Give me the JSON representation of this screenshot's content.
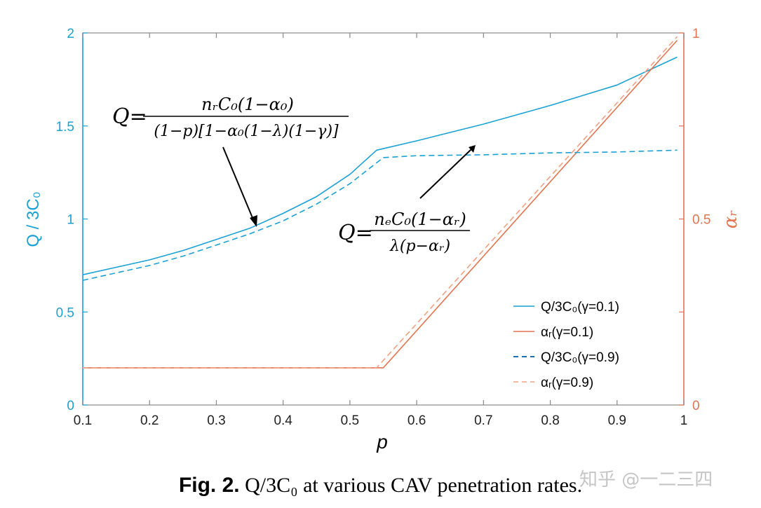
{
  "caption": {
    "fig_label": "Fig. 2.",
    "text": "Q/3C₀ at various CAV penetration rates."
  },
  "watermark": "知乎 @一二三四",
  "colors": {
    "blue": "#1aa1d6",
    "orange": "#e27450",
    "axis": "#888888"
  },
  "annotations": {
    "formula1": {
      "lhs": "Q=",
      "numerator": "nᵣC₀(1−α₀)",
      "denominator": "(1−p)[1−α₀(1−λ)(1−γ)]"
    },
    "formula2": {
      "lhs": "Q=",
      "numerator": "nₑC₀(1−αᵣ)",
      "denominator": "λ(p−αᵣ)"
    }
  },
  "chart_data": {
    "type": "line",
    "xlabel": "p",
    "ylabel_left": "Q / 3C₀",
    "ylabel_right": "αᵣ",
    "xlim": [
      0.1,
      1.0
    ],
    "ylim_left": [
      0,
      2
    ],
    "ylim_right": [
      0,
      1
    ],
    "x_ticks": [
      "0.1",
      "0.2",
      "0.3",
      "0.4",
      "0.5",
      "0.6",
      "0.7",
      "0.8",
      "0.9",
      "1"
    ],
    "y_ticks_left": [
      "0",
      "0.5",
      "1",
      "1.5",
      "2"
    ],
    "y_ticks_right": [
      "0",
      "0.5",
      "1"
    ],
    "legend_position": "lower-right",
    "grid": false,
    "series": [
      {
        "name": "Q/3C₀(γ=0.1)",
        "axis": "left",
        "color": "#1aa1d6",
        "dash": "solid",
        "x": [
          0.1,
          0.15,
          0.2,
          0.25,
          0.3,
          0.35,
          0.4,
          0.45,
          0.5,
          0.54,
          0.6,
          0.7,
          0.8,
          0.9,
          0.99
        ],
        "y": [
          0.7,
          0.74,
          0.78,
          0.83,
          0.89,
          0.95,
          1.03,
          1.12,
          1.24,
          1.37,
          1.42,
          1.51,
          1.61,
          1.72,
          1.87
        ]
      },
      {
        "name": "αᵣ(γ=0.1)",
        "axis": "right",
        "color": "#e27450",
        "dash": "solid",
        "x": [
          0.1,
          0.55,
          0.99
        ],
        "y": [
          0.1,
          0.1,
          0.98
        ]
      },
      {
        "name": "Q/3C₀(γ=0.9)",
        "axis": "left",
        "color": "#1aa1d6",
        "dash": "dashed",
        "x": [
          0.1,
          0.15,
          0.2,
          0.25,
          0.3,
          0.35,
          0.4,
          0.45,
          0.5,
          0.55,
          0.6,
          0.7,
          0.8,
          0.9,
          0.99
        ],
        "y": [
          0.67,
          0.71,
          0.75,
          0.8,
          0.86,
          0.92,
          0.99,
          1.08,
          1.19,
          1.33,
          1.34,
          1.345,
          1.355,
          1.36,
          1.37
        ]
      },
      {
        "name": "αᵣ(γ=0.9)",
        "axis": "right",
        "color": "#e27450",
        "dash": "dashed",
        "x": [
          0.1,
          0.54,
          0.99
        ],
        "y": [
          0.1,
          0.1,
          0.99
        ]
      }
    ]
  }
}
